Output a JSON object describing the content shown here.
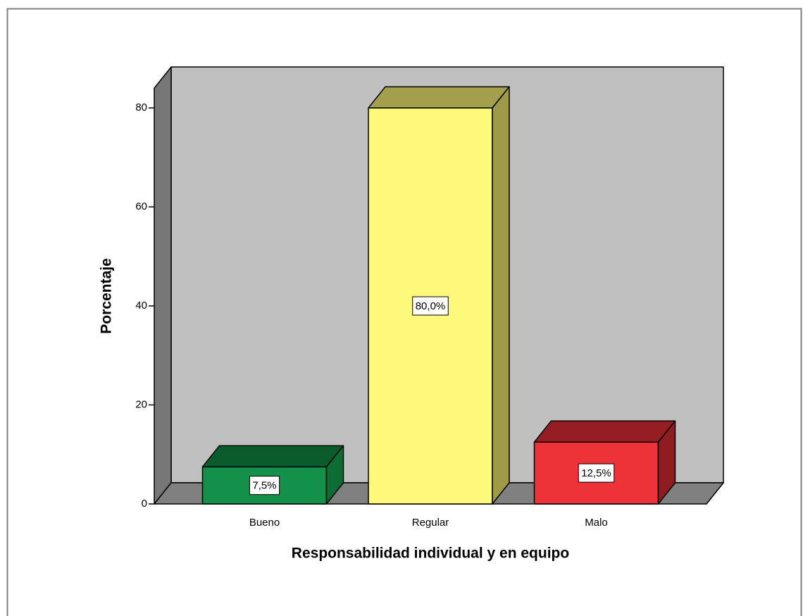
{
  "chart_data": {
    "type": "bar3d",
    "x_label": "Responsabilidad individual y en equipo",
    "y_label": "Porcentaje",
    "categories": [
      "Bueno",
      "Regular",
      "Malo"
    ],
    "values": [
      7.5,
      80.0,
      12.5
    ],
    "value_labels": [
      "7,5%",
      "80,0%",
      "12,5%"
    ],
    "colors": [
      {
        "front": "#13914a",
        "top": "#0b5c2c",
        "side": "#0e6c35"
      },
      {
        "front": "#fbf87a",
        "top": "#a39f4c",
        "side": "#9e9a48"
      },
      {
        "front": "#ee3338",
        "top": "#961d22",
        "side": "#8f1c20"
      }
    ],
    "ylim": [
      0,
      84
    ],
    "yticks": [
      0,
      20,
      40,
      60,
      80
    ]
  }
}
